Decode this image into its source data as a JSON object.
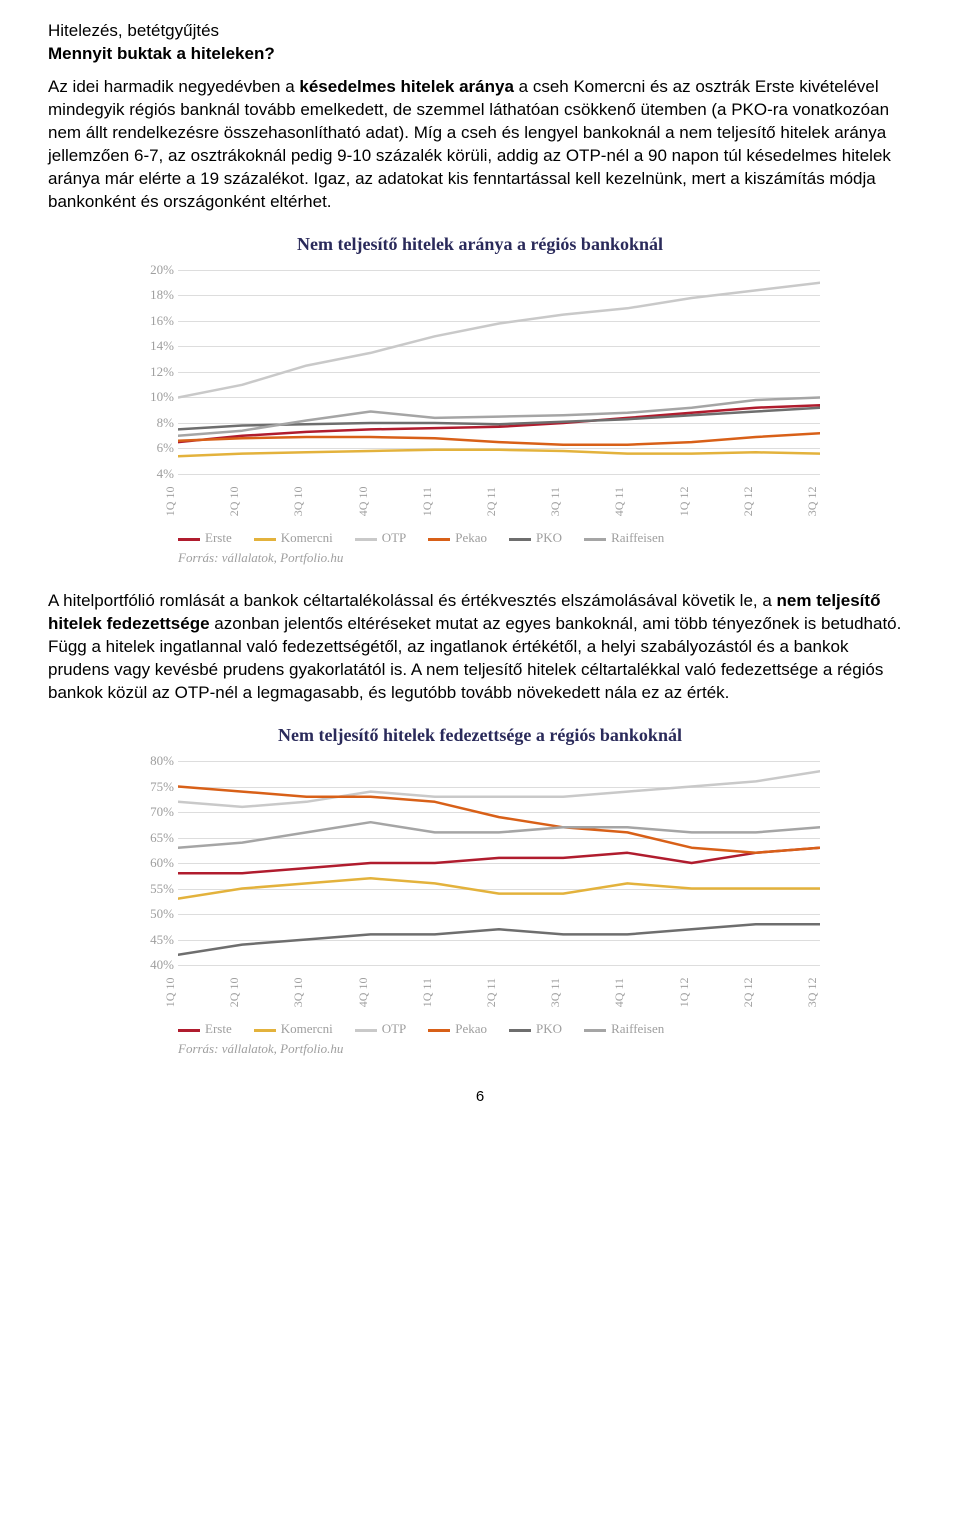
{
  "text": {
    "subheading": "Hitelezés, betétgyűjtés",
    "heading": "Mennyit buktak a hiteleken?",
    "p1a": "Az idei harmadik negyedévben a ",
    "p1b": "késedelmes hitelek aránya",
    "p1c": " a cseh Komercni és az osztrák Erste kivételével mindegyik régiós banknál tovább emelkedett, de szemmel láthatóan csökkenő ütemben (a PKO-ra vonatkozóan nem állt rendelkezésre összehasonlítható adat). Míg a cseh és lengyel bankoknál a nem teljesítő hitelek aránya jellemzően 6-7, az osztrákoknál pedig 9-10 százalék körüli, addig az OTP-nél a 90 napon túl késedelmes hitelek aránya már elérte a 19 százalékot. Igaz, az adatokat kis fenntartással kell kezelnünk, mert a kiszámítás módja bankonként és országonként eltérhet.",
    "p2a": "A hitelportfólió romlását a bankok céltartalékolással és értékvesztés elszámolásával követik le, a ",
    "p2b": "nem teljesítő hitelek fedezettsége",
    "p2c": " azonban jelentős eltéréseket mutat az egyes bankoknál, ami több tényezőnek is betudható. Függ a hitelek ingatlannal való fedezettségétől, az ingatlanok értékétől, a helyi szabályozástól és a bankok prudens vagy kevésbé prudens gyakorlatától is. A nem teljesítő hitelek céltartalékkal való fedezettsége a régiós bankok közül az OTP-nél a legmagasabb, és legutóbb tovább növekedett nála ez az érték.",
    "source": "Forrás: vállalatok, Portfolio.hu",
    "pagenum": "6"
  },
  "legend": {
    "labels": [
      "Erste",
      "Komercni",
      "OTP",
      "Pekao",
      "PKO",
      "Raiffeisen"
    ],
    "colors": [
      "#b01c2e",
      "#e3b23c",
      "#c9c9c9",
      "#d86018",
      "#6e6e6e",
      "#a5a5a5"
    ]
  },
  "chart1": {
    "title": "Nem teljesítő hitelek aránya a régiós bankoknál",
    "xlabels": [
      "1Q 10",
      "2Q 10",
      "3Q 10",
      "4Q 10",
      "1Q 11",
      "2Q 11",
      "3Q 11",
      "4Q 11",
      "1Q 12",
      "2Q 12",
      "3Q 12"
    ],
    "ymin": 4,
    "ymax": 20,
    "ystep": 2,
    "ysuffix": "%",
    "series": {
      "Erste": [
        6.5,
        7.0,
        7.3,
        7.5,
        7.6,
        7.7,
        8.0,
        8.4,
        8.8,
        9.2,
        9.4
      ],
      "Komercni": [
        5.4,
        5.6,
        5.7,
        5.8,
        5.9,
        5.9,
        5.8,
        5.6,
        5.6,
        5.7,
        5.6
      ],
      "OTP": [
        10.0,
        11.0,
        12.5,
        13.5,
        14.8,
        15.8,
        16.5,
        17.0,
        17.8,
        18.4,
        19.0
      ],
      "Pekao": [
        6.6,
        6.8,
        6.9,
        6.9,
        6.8,
        6.5,
        6.3,
        6.3,
        6.5,
        6.9,
        7.2
      ],
      "PKO": [
        7.5,
        7.8,
        7.9,
        8.0,
        8.0,
        7.9,
        8.1,
        8.3,
        8.6,
        8.9,
        9.2
      ],
      "Raiffeisen": [
        7.0,
        7.4,
        8.2,
        8.9,
        8.4,
        8.5,
        8.6,
        8.8,
        9.2,
        9.8,
        10.0
      ]
    },
    "background": "#ffffff",
    "grid_color": "#dddddd",
    "line_width": 2.5
  },
  "chart2": {
    "title": "Nem teljesítő hitelek fedezettsége a régiós bankoknál",
    "xlabels": [
      "1Q 10",
      "2Q 10",
      "3Q 10",
      "4Q 10",
      "1Q 11",
      "2Q 11",
      "3Q 11",
      "4Q 11",
      "1Q 12",
      "2Q 12",
      "3Q 12"
    ],
    "ymin": 40,
    "ymax": 80,
    "ystep": 5,
    "ysuffix": "%",
    "series": {
      "Erste": [
        58,
        58,
        59,
        60,
        60,
        61,
        61,
        62,
        60,
        62,
        63
      ],
      "Komercni": [
        53,
        55,
        56,
        57,
        56,
        54,
        54,
        56,
        55,
        55,
        55
      ],
      "OTP": [
        72,
        71,
        72,
        74,
        73,
        73,
        73,
        74,
        75,
        76,
        78
      ],
      "Pekao": [
        75,
        74,
        73,
        73,
        72,
        69,
        67,
        66,
        63,
        62,
        63
      ],
      "PKO": [
        42,
        44,
        45,
        46,
        46,
        47,
        46,
        46,
        47,
        48,
        48
      ],
      "Raiffeisen": [
        63,
        64,
        66,
        68,
        66,
        66,
        67,
        67,
        66,
        66,
        67
      ]
    },
    "background": "#ffffff",
    "grid_color": "#dddddd",
    "line_width": 2.5
  }
}
